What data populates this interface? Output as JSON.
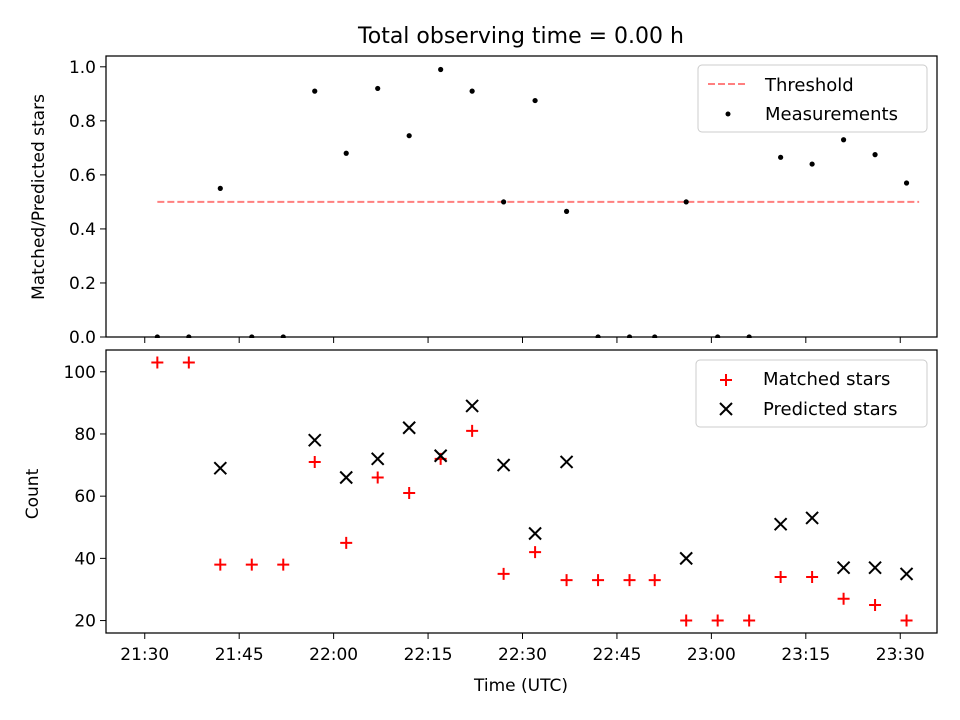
{
  "chart_data": [
    {
      "type": "scatter",
      "title": "Total observing time = 0.00 h",
      "ylabel": "Matched/Predicted stars",
      "xlabel": "",
      "ylim": [
        0,
        1.04
      ],
      "yticks": [
        "0.0",
        "0.2",
        "0.4",
        "0.6",
        "0.8",
        "1.0"
      ],
      "legend_position": "top-right",
      "series": [
        {
          "name": "Threshold",
          "style": "dashed-line",
          "color": "#ff7f7f",
          "x": [
            "21:32",
            "23:33"
          ],
          "y": [
            0.5,
            0.5
          ]
        },
        {
          "name": "Measurements",
          "style": "dot",
          "color": "#000000",
          "x": [
            "21:32",
            "21:37",
            "21:42",
            "21:47",
            "21:52",
            "21:57",
            "22:02",
            "22:07",
            "22:12",
            "22:17",
            "22:22",
            "22:27",
            "22:32",
            "22:37",
            "22:42",
            "22:47",
            "22:51",
            "22:56",
            "23:01",
            "23:06",
            "23:11",
            "23:16",
            "23:21",
            "23:26",
            "23:31"
          ],
          "y": [
            0.0,
            0.0,
            0.55,
            0.0,
            0.0,
            0.91,
            0.68,
            0.92,
            0.745,
            0.99,
            0.91,
            0.5,
            0.875,
            0.465,
            0.0,
            0.0,
            0.0,
            0.5,
            0.0,
            0.0,
            0.665,
            0.64,
            0.73,
            0.675,
            0.57
          ]
        }
      ]
    },
    {
      "type": "scatter",
      "title": "",
      "ylabel": "Count",
      "xlabel": "Time (UTC)",
      "ylim": [
        16,
        107
      ],
      "yticks": [
        "20",
        "40",
        "60",
        "80",
        "100"
      ],
      "xticks": [
        "21:30",
        "21:45",
        "22:00",
        "22:15",
        "22:30",
        "22:45",
        "23:00",
        "23:15",
        "23:30"
      ],
      "legend_position": "top-right",
      "series": [
        {
          "name": "Matched stars",
          "marker": "plus",
          "color": "#ff0000",
          "x": [
            "21:32",
            "21:37",
            "21:42",
            "21:47",
            "21:52",
            "21:57",
            "22:02",
            "22:07",
            "22:12",
            "22:17",
            "22:22",
            "22:27",
            "22:32",
            "22:37",
            "22:42",
            "22:47",
            "22:51",
            "22:56",
            "23:01",
            "23:06",
            "23:11",
            "23:16",
            "23:21",
            "23:26",
            "23:31"
          ],
          "y": [
            103,
            103,
            38,
            38,
            38,
            71,
            45,
            66,
            61,
            72,
            81,
            35,
            42,
            33,
            33,
            33,
            33,
            20,
            20,
            20,
            34,
            34,
            27,
            25,
            20
          ]
        },
        {
          "name": "Predicted stars",
          "marker": "x",
          "color": "#000000",
          "x": [
            "21:42",
            "21:57",
            "22:02",
            "22:07",
            "22:12",
            "22:17",
            "22:22",
            "22:27",
            "22:32",
            "22:37",
            "22:56",
            "23:11",
            "23:16",
            "23:21",
            "23:26",
            "23:31"
          ],
          "y": [
            69,
            78,
            66,
            72,
            82,
            73,
            89,
            70,
            48,
            71,
            40,
            51,
            53,
            37,
            37,
            35
          ]
        }
      ]
    }
  ]
}
